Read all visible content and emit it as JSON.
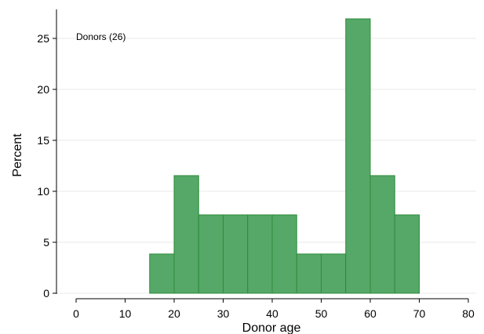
{
  "chart_data": {
    "type": "bar",
    "histogram": true,
    "bin_width": 5,
    "bins": [
      {
        "start": 15,
        "end": 20,
        "value": 3.85
      },
      {
        "start": 20,
        "end": 25,
        "value": 11.54
      },
      {
        "start": 25,
        "end": 30,
        "value": 7.69
      },
      {
        "start": 30,
        "end": 35,
        "value": 7.69
      },
      {
        "start": 35,
        "end": 40,
        "value": 7.69
      },
      {
        "start": 40,
        "end": 45,
        "value": 7.69
      },
      {
        "start": 45,
        "end": 50,
        "value": 3.85
      },
      {
        "start": 50,
        "end": 55,
        "value": 3.85
      },
      {
        "start": 55,
        "end": 60,
        "value": 26.92
      },
      {
        "start": 60,
        "end": 65,
        "value": 11.54
      },
      {
        "start": 65,
        "end": 70,
        "value": 7.69
      }
    ],
    "annotation": "Donors (26)",
    "xlabel": "Donor age",
    "ylabel": "Percent",
    "xlim": [
      0,
      80
    ],
    "ylim": [
      0,
      27
    ],
    "xticks": [
      0,
      10,
      20,
      30,
      40,
      50,
      60,
      70,
      80
    ],
    "yticks": [
      0,
      5,
      10,
      15,
      20,
      25
    ],
    "grid": true,
    "colors": {
      "bar_fill": "#55a868",
      "bar_stroke": "#2e8b3a",
      "grid": "#e8e8e8",
      "axis": "#000000"
    }
  }
}
